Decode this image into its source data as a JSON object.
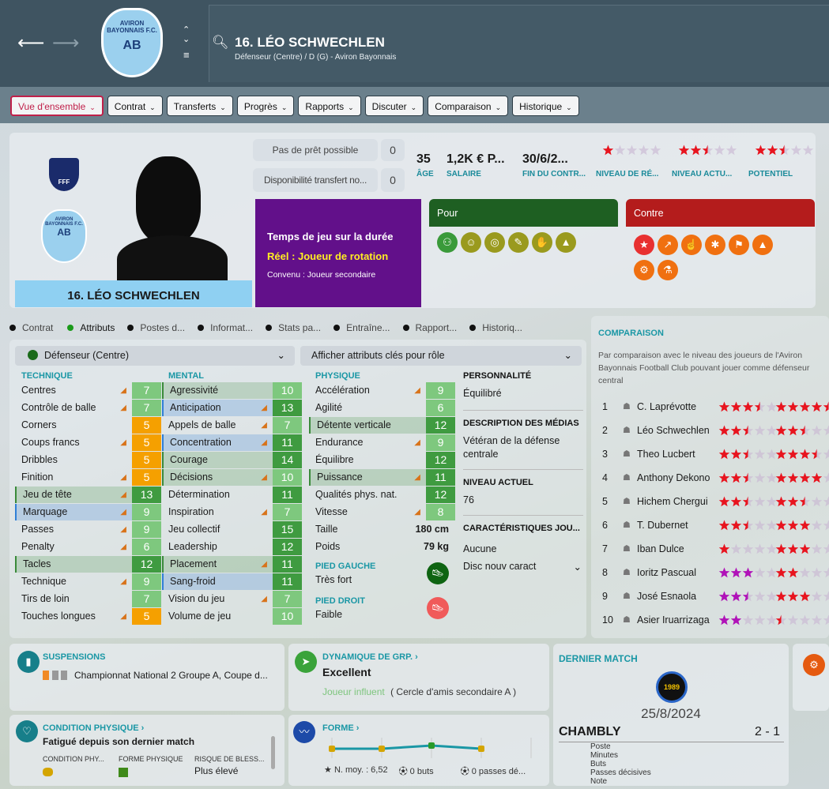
{
  "header": {
    "back_icon": "arrow-left-icon",
    "forward_icon": "arrow-right-icon",
    "club_crest_text": "AVIRON BAYONNAIS F.C.",
    "club_crest_initials": "AB",
    "title": "16. LÉO SCHWECHLEN",
    "subtitle": "Défenseur (Centre) / D (G) - Aviron Bayonnais"
  },
  "tabs": [
    "Vue d'ensemble",
    "Contrat",
    "Transferts",
    "Progrès",
    "Rapports",
    "Discuter",
    "Comparaison",
    "Historique"
  ],
  "profile": {
    "name": "16. LÉO SCHWECHLEN",
    "nation_badge": "FFF",
    "loan": {
      "label": "Pas de prêt possible",
      "value": "0"
    },
    "transfer": {
      "label": "Disponibilité transfert no...",
      "value": "0"
    },
    "stats": [
      {
        "value": "35",
        "label": "ÂGE"
      },
      {
        "value": "1,2K € P...",
        "label": "SALAIRE"
      },
      {
        "value": "30/6/2...",
        "label": "FIN DU CONTR..."
      }
    ],
    "ratings": [
      {
        "label": "NIVEAU DE RÉ...",
        "stars": 1
      },
      {
        "label": "NIVEAU ACTU...",
        "stars": 2.5
      },
      {
        "label": "POTENTIEL",
        "stars": 2.5
      }
    ],
    "playtime": {
      "title": "Temps de jeu sur la durée",
      "real": "Réel : Joueur de rotation",
      "agreed": "Convenu : Joueur secondaire"
    },
    "pour": {
      "title": "Pour",
      "icons": [
        "team-icon",
        "brain-icon",
        "target-icon",
        "bandage-icon",
        "handshake-icon",
        "cone-icon"
      ]
    },
    "contre": {
      "title": "Contre",
      "icons": [
        "star-icon",
        "trend-icon",
        "foot-icon",
        "injury-icon",
        "whistle-icon",
        "cone-icon",
        "cone-gear-icon",
        "flask-icon"
      ]
    }
  },
  "subtabs": [
    {
      "label": "Contrat",
      "active": false
    },
    {
      "label": "Attributs",
      "active": true
    },
    {
      "label": "Postes d...",
      "active": false
    },
    {
      "label": "Informat...",
      "active": false
    },
    {
      "label": "Stats pa...",
      "active": false
    },
    {
      "label": "Entraîne...",
      "active": false
    },
    {
      "label": "Rapport...",
      "active": false
    },
    {
      "label": "Historiq...",
      "active": false
    }
  ],
  "role_select": "Défenseur (Centre)",
  "key_attr_select": "Afficher attributs clés pour rôle",
  "technique": {
    "title": "TECHNIQUE",
    "items": [
      [
        "Centres",
        7,
        1,
        ""
      ],
      [
        "Contrôle de balle",
        7,
        1,
        ""
      ],
      [
        "Corners",
        5,
        0,
        ""
      ],
      [
        "Coups francs",
        5,
        1,
        ""
      ],
      [
        "Dribbles",
        5,
        0,
        ""
      ],
      [
        "Finition",
        5,
        1,
        ""
      ],
      [
        "Jeu de tête",
        13,
        1,
        "g"
      ],
      [
        "Marquage",
        9,
        1,
        "b"
      ],
      [
        "Passes",
        9,
        1,
        ""
      ],
      [
        "Penalty",
        6,
        1,
        ""
      ],
      [
        "Tacles",
        12,
        0,
        "g"
      ],
      [
        "Technique",
        9,
        1,
        ""
      ],
      [
        "Tirs de loin",
        7,
        0,
        ""
      ],
      [
        "Touches longues",
        5,
        1,
        ""
      ]
    ]
  },
  "mental": {
    "title": "MENTAL",
    "items": [
      [
        "Agressivité",
        10,
        0,
        "g"
      ],
      [
        "Anticipation",
        13,
        1,
        "b"
      ],
      [
        "Appels de balle",
        7,
        1,
        ""
      ],
      [
        "Concentration",
        11,
        1,
        "b"
      ],
      [
        "Courage",
        14,
        0,
        "g"
      ],
      [
        "Décisions",
        10,
        1,
        "g"
      ],
      [
        "Détermination",
        11,
        0,
        ""
      ],
      [
        "Inspiration",
        7,
        1,
        ""
      ],
      [
        "Jeu collectif",
        15,
        0,
        ""
      ],
      [
        "Leadership",
        12,
        0,
        ""
      ],
      [
        "Placement",
        11,
        1,
        "g"
      ],
      [
        "Sang-froid",
        11,
        0,
        "b"
      ],
      [
        "Vision du jeu",
        7,
        1,
        ""
      ],
      [
        "Volume de jeu",
        10,
        0,
        ""
      ]
    ]
  },
  "physique": {
    "title": "PHYSIQUE",
    "items": [
      [
        "Accélération",
        9,
        1,
        ""
      ],
      [
        "Agilité",
        6,
        0,
        ""
      ],
      [
        "Détente verticale",
        12,
        0,
        "g"
      ],
      [
        "Endurance",
        9,
        1,
        ""
      ],
      [
        "Équilibre",
        12,
        0,
        ""
      ],
      [
        "Puissance",
        11,
        1,
        "g"
      ],
      [
        "Qualités phys. nat.",
        12,
        0,
        ""
      ],
      [
        "Vitesse",
        8,
        1,
        ""
      ]
    ],
    "height_label": "Taille",
    "height": "180 cm",
    "weight_label": "Poids",
    "weight": "79 kg",
    "left_foot_label": "PIED GAUCHE",
    "left_foot": "Très fort",
    "right_foot_label": "PIED DROIT",
    "right_foot": "Faible"
  },
  "info": {
    "personality_label": "PERSONNALITÉ",
    "personality": "Équilibré",
    "media_label": "DESCRIPTION DES MÉDIAS",
    "media": "Vétéran de la défense centrale",
    "level_label": "NIVEAU ACTUEL",
    "level": "76",
    "traits_label": "CARACTÉRISTIQUES JOU...",
    "traits": "Aucune",
    "traits_select": "Disc nouv caract"
  },
  "comparison": {
    "title": "COMPARAISON",
    "desc": "Par comparaison avec le niveau des joueurs de l'Aviron Bayonnais Football Club pouvant jouer comme défenseur central",
    "rows": [
      [
        "1",
        "C. Laprévotte",
        3.5,
        4.5,
        "#e8141e"
      ],
      [
        "2",
        "Léo Schwechlen",
        2.5,
        2.5,
        "#e8141e"
      ],
      [
        "3",
        "Theo Lucbert",
        2.5,
        3.5,
        "#e8141e"
      ],
      [
        "4",
        "Anthony Dekono",
        2.5,
        4,
        "#e8141e"
      ],
      [
        "5",
        "Hichem Chergui",
        2.5,
        2.5,
        "#e8141e"
      ],
      [
        "6",
        "T. Dubernet",
        2.5,
        3,
        "#e8141e"
      ],
      [
        "7",
        "Iban Dulce",
        1,
        3,
        "#e8141e"
      ],
      [
        "8",
        "Ioritz Pascual",
        3,
        2,
        "#b012b8"
      ],
      [
        "9",
        "José Esnaola",
        2.5,
        3,
        "#b012b8"
      ],
      [
        "10",
        "Asier Iruarrizaga",
        2,
        0.5,
        "#b012b8"
      ]
    ]
  },
  "suspensions": {
    "title": "SUSPENSIONS",
    "text": "Championnat National 2 Groupe A, Coupe d..."
  },
  "dynamics": {
    "title": "DYNAMIQUE DE GRP. ›",
    "value": "Excellent",
    "role": "Joueur influent",
    "circle": "( Cercle d'amis secondaire A )"
  },
  "condition": {
    "title": "CONDITION PHYSIQUE ›",
    "value": "Fatigué depuis son dernier match",
    "cols": [
      "CONDITION PHY...",
      "FORME PHYSIQUE",
      "RISQUE DE BLESS..."
    ],
    "risk": "Plus élevé"
  },
  "form": {
    "title": "FORME ›",
    "avg": "N. moy. : 6,52",
    "goals": "0 buts",
    "assists": "0 passes dé...",
    "points": [
      6.5,
      6.5,
      6.6,
      6.5
    ]
  },
  "last_match": {
    "title": "DERNIER MATCH",
    "badge": "1989",
    "date": "25/8/2024",
    "opponent": "CHAMBLY",
    "score": "2 - 1",
    "stats": [
      "Poste",
      "Minutes",
      "Buts",
      "Passes décisives",
      "Note"
    ]
  },
  "colors": {
    "header": "#3f5461",
    "accent": "#1a97a5",
    "low": "#f5a000",
    "mid": "#7ec87e",
    "high": "#3f9b40",
    "pour": "#1e5f22",
    "contre": "#b41c1c",
    "playtime": "#62108a"
  }
}
